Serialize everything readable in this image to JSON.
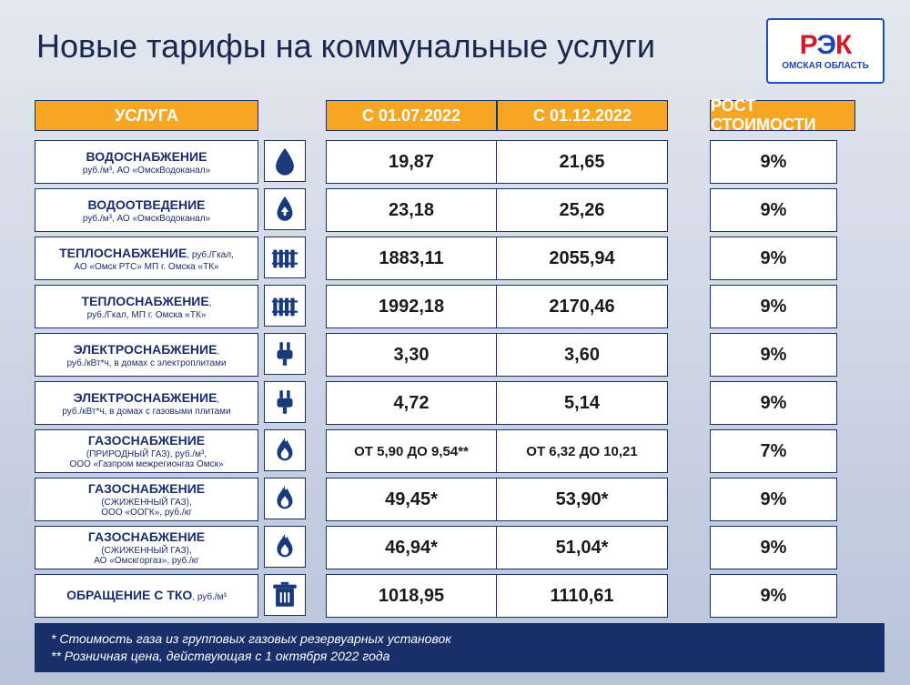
{
  "title": "Новые тарифы на коммунальные услуги",
  "logo": {
    "line1a": "Р",
    "line1b": "Э",
    "line1c": "К",
    "sub": "ОМСКАЯ ОБЛАСТЬ"
  },
  "headers": {
    "service": "УСЛУГА",
    "col1": "С 01.07.2022",
    "col2": "С 01.12.2022",
    "growth": "РОСТ СТОИМОСТИ"
  },
  "rows": [
    {
      "name": "ВОДОСНАБЖЕНИЕ",
      "sub": "руб./м³, АО «ОмскВодоканал»",
      "icon": "water-drop",
      "v1": "19,87",
      "v2": "21,65",
      "growth": "9%"
    },
    {
      "name": "ВОДООТВЕДЕНИЕ",
      "sub": "руб./м³, АО «ОмскВодоканал»",
      "icon": "drain",
      "v1": "23,18",
      "v2": "25,26",
      "growth": "9%"
    },
    {
      "name": "ТЕПЛОСНАБЖЕНИЕ",
      "postname": ", руб./Гкал,",
      "sub": "АО «Омск РТС» МП г. Омска «ТК»",
      "icon": "radiator",
      "v1": "1883,11",
      "v2": "2055,94",
      "growth": "9%"
    },
    {
      "name": "ТЕПЛОСНАБЖЕНИЕ",
      "postname": ",",
      "sub": "руб./Гкал, МП г. Омска «ТК»",
      "icon": "radiator",
      "v1": "1992,18",
      "v2": "2170,46",
      "growth": "9%"
    },
    {
      "name": "ЭЛЕКТРОСНАБЖЕНИЕ",
      "postname": ",",
      "sub": "руб./кВт*ч, в домах с электроплитами",
      "icon": "plug",
      "v1": "3,30",
      "v2": "3,60",
      "growth": "9%"
    },
    {
      "name": "ЭЛЕКТРОСНАБЖЕНИЕ",
      "postname": ",",
      "sub": "руб./кВт*ч, в домах с газовыми плитами",
      "icon": "plug",
      "v1": "4,72",
      "v2": "5,14",
      "growth": "9%"
    },
    {
      "name": "ГАЗОСНАБЖЕНИЕ",
      "sub": "(ПРИРОДНЫЙ ГАЗ), руб./м³,\nООО «Газпром межрегионгаз Омск»",
      "icon": "flame",
      "v1": "ОТ 5,90 ДО 9,54**",
      "v2": "ОТ 6,32 ДО 10,21",
      "growth": "7%",
      "small": true
    },
    {
      "name": "ГАЗОСНАБЖЕНИЕ",
      "sub": "(СЖИЖЕННЫЙ ГАЗ),\nООО «ООГК», руб./кг",
      "icon": "flame",
      "v1": "49,45*",
      "v2": "53,90*",
      "growth": "9%"
    },
    {
      "name": "ГАЗОСНАБЖЕНИЕ",
      "sub": "(СЖИЖЕННЫЙ ГАЗ),\nАО «Омскгоргаз», руб./кг",
      "icon": "flame",
      "v1": "46,94*",
      "v2": "51,04*",
      "growth": "9%"
    },
    {
      "name": "ОБРАЩЕНИЕ С ТКО",
      "postname": ", руб./м³",
      "sub": "",
      "icon": "trash",
      "v1": "1018,95",
      "v2": "1110,61",
      "growth": "9%"
    }
  ],
  "footnotes": {
    "l1": "*   Стоимость газа из групповых газовых резервуарных установок",
    "l2": "**  Розничная цена, действующая с 1 октября 2022 года"
  },
  "colors": {
    "accent": "#f5a623",
    "navy": "#1a2e6a",
    "red": "#d11a2a",
    "blue": "#2045b0"
  }
}
